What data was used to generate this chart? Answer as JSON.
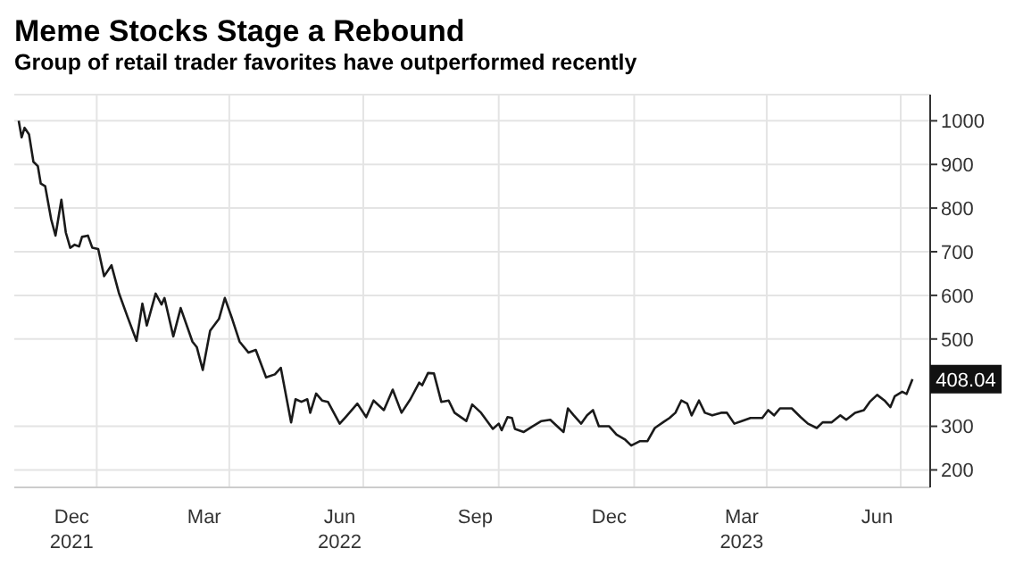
{
  "chart_data": {
    "type": "line",
    "title": "Meme Stocks Stage a Rebound",
    "subtitle": "Group of retail trader favorites have outperformed recently",
    "x": [
      "2021-11-09",
      "2021-11-11",
      "2021-11-13",
      "2021-11-16",
      "2021-11-19",
      "2021-11-22",
      "2021-11-24",
      "2021-11-27",
      "2021-12-01",
      "2021-12-04",
      "2021-12-08",
      "2021-12-11",
      "2021-12-14",
      "2021-12-17",
      "2021-12-20",
      "2021-12-22",
      "2021-12-26",
      "2021-12-29",
      "2022-01-02",
      "2022-01-06",
      "2022-01-11",
      "2022-01-16",
      "2022-01-22",
      "2022-01-28",
      "2022-02-01",
      "2022-02-04",
      "2022-02-10",
      "2022-02-14",
      "2022-02-16",
      "2022-02-22",
      "2022-02-27",
      "2022-03-07",
      "2022-03-10",
      "2022-03-14",
      "2022-03-19",
      "2022-03-25",
      "2022-03-29",
      "2022-04-03",
      "2022-04-08",
      "2022-04-14",
      "2022-04-19",
      "2022-04-26",
      "2022-05-02",
      "2022-05-06",
      "2022-05-13",
      "2022-05-16",
      "2022-05-20",
      "2022-05-24",
      "2022-05-26",
      "2022-05-30",
      "2022-06-03",
      "2022-06-07",
      "2022-06-15",
      "2022-06-19",
      "2022-06-27",
      "2022-07-03",
      "2022-07-08",
      "2022-07-15",
      "2022-07-21",
      "2022-07-27",
      "2022-08-02",
      "2022-08-08",
      "2022-08-10",
      "2022-08-14",
      "2022-08-18",
      "2022-08-23",
      "2022-08-28",
      "2022-09-01",
      "2022-09-09",
      "2022-09-13",
      "2022-09-19",
      "2022-09-27",
      "2022-10-01",
      "2022-10-03",
      "2022-10-07",
      "2022-10-10",
      "2022-10-12",
      "2022-10-18",
      "2022-10-24",
      "2022-10-30",
      "2022-11-05",
      "2022-11-11",
      "2022-11-14",
      "2022-11-17",
      "2022-11-21",
      "2022-11-26",
      "2022-11-30",
      "2022-12-04",
      "2022-12-08",
      "2022-12-15",
      "2022-12-20",
      "2022-12-26",
      "2022-12-30",
      "2023-01-05",
      "2023-01-10",
      "2023-01-15",
      "2023-01-21",
      "2023-01-25",
      "2023-01-29",
      "2023-02-02",
      "2023-02-06",
      "2023-02-09",
      "2023-02-14",
      "2023-02-18",
      "2023-02-23",
      "2023-03-01",
      "2023-03-05",
      "2023-03-10",
      "2023-03-15",
      "2023-03-21",
      "2023-03-29",
      "2023-04-02",
      "2023-04-06",
      "2023-04-10",
      "2023-04-18",
      "2023-04-24",
      "2023-04-29",
      "2023-05-05",
      "2023-05-09",
      "2023-05-15",
      "2023-05-21",
      "2023-05-25",
      "2023-05-31",
      "2023-06-06",
      "2023-06-10",
      "2023-06-15",
      "2023-06-20",
      "2023-06-24",
      "2023-06-27",
      "2023-07-02",
      "2023-07-05",
      "2023-07-09"
    ],
    "series": [
      {
        "color": "#1a1a1a",
        "values": [
          1000,
          962,
          984,
          969,
          906,
          896,
          856,
          850,
          775,
          737,
          819,
          744,
          709,
          716,
          712,
          734,
          737,
          709,
          706,
          644,
          669,
          606,
          550,
          496,
          581,
          531,
          604,
          579,
          594,
          506,
          571,
          494,
          481,
          429,
          519,
          546,
          594,
          546,
          494,
          469,
          475,
          412,
          419,
          434,
          309,
          362,
          356,
          362,
          331,
          375,
          359,
          356,
          306,
          321,
          352,
          321,
          359,
          337,
          384,
          331,
          362,
          400,
          394,
          422,
          421,
          356,
          359,
          331,
          312,
          350,
          331,
          294,
          306,
          291,
          321,
          319,
          294,
          287,
          300,
          312,
          315,
          296,
          287,
          341,
          325,
          306,
          325,
          337,
          300,
          300,
          281,
          269,
          256,
          266,
          266,
          296,
          310,
          319,
          331,
          359,
          352,
          325,
          359,
          331,
          325,
          331,
          331,
          306,
          312,
          319,
          319,
          337,
          325,
          341,
          341,
          321,
          306,
          296,
          309,
          309,
          325,
          315,
          331,
          337,
          356,
          372,
          359,
          344,
          369,
          379,
          374,
          408.04
        ]
      }
    ],
    "xlim": [
      "2021-11-06",
      "2023-07-21"
    ],
    "xticks": [
      {
        "value": "2021-12-15",
        "label": "Dec\n2021"
      },
      {
        "value": "2022-01-01",
        "label": null
      },
      {
        "value": "2022-03-15",
        "label": "Mar"
      },
      {
        "value": "2022-04-01",
        "label": null
      },
      {
        "value": "2022-06-15",
        "label": "Jun\n2022"
      },
      {
        "value": "2022-07-01",
        "label": null
      },
      {
        "value": "2022-09-15",
        "label": "Sep"
      },
      {
        "value": "2022-10-01",
        "label": null
      },
      {
        "value": "2022-12-15",
        "label": "Dec"
      },
      {
        "value": "2023-01-01",
        "label": null
      },
      {
        "value": "2023-03-15",
        "label": "Mar\n2023"
      },
      {
        "value": "2023-04-01",
        "label": null
      },
      {
        "value": "2023-06-15",
        "label": "Jun"
      },
      {
        "value": "2023-07-01",
        "label": null
      }
    ],
    "ylim": [
      160,
      1060
    ],
    "yticks": [
      200,
      300,
      500,
      600,
      700,
      800,
      900,
      1000
    ],
    "grid": true,
    "line_style": "solid",
    "marker": "none",
    "annotations": [
      {
        "text": "408.04",
        "x": "2023-07-09",
        "y": 408.04
      }
    ]
  }
}
